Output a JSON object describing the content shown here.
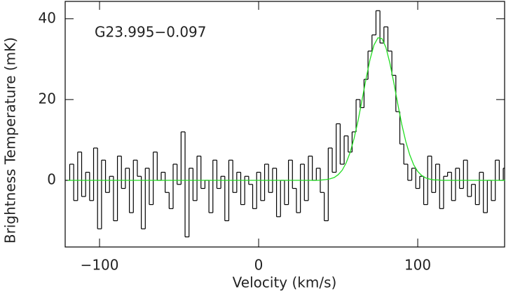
{
  "chart_data": {
    "type": "spectrum",
    "annotation": "G23.995−0.097",
    "xlabel": "Velocity (km/s)",
    "ylabel": "Brightness Temperature (mK)",
    "xlim": [
      -121.6,
      154.6
    ],
    "ylim": [
      -16.5,
      44.3
    ],
    "xticks": [
      {
        "value": -100,
        "label": "−100"
      },
      0,
      100
    ],
    "yticks": [
      0,
      20,
      40
    ],
    "x": [
      -120,
      -117.5,
      -115,
      -112.5,
      -110,
      -107.5,
      -105,
      -102.5,
      -100,
      -97.5,
      -95,
      -92.5,
      -90,
      -87.5,
      -85,
      -82.5,
      -80,
      -77.5,
      -75,
      -72.5,
      -70,
      -67.5,
      -65,
      -62.5,
      -60,
      -57.5,
      -55,
      -52.5,
      -50,
      -47.5,
      -45,
      -42.5,
      -40,
      -37.5,
      -35,
      -32.5,
      -30,
      -27.5,
      -25,
      -22.5,
      -20,
      -17.5,
      -15,
      -12.5,
      -10,
      -7.5,
      -5,
      -2.5,
      0,
      2.5,
      5,
      7.5,
      10,
      12.5,
      15,
      17.5,
      20,
      22.5,
      25,
      27.5,
      30,
      32.5,
      35,
      37.5,
      40,
      42.5,
      45,
      47.5,
      50,
      52.5,
      55,
      57.5,
      60,
      62.5,
      65,
      67.5,
      70,
      72.5,
      75,
      77.5,
      80,
      82.5,
      85,
      87.5,
      90,
      92.5,
      95,
      97.5,
      100,
      102.5,
      105,
      107.5,
      110,
      112.5,
      115,
      117.5,
      120,
      122.5,
      125,
      127.5,
      130,
      132.5,
      135,
      137.5,
      140,
      142.5,
      145,
      147.5,
      150,
      152.5,
      155
    ],
    "series": [
      {
        "style": "steps",
        "color": "#000000",
        "values": [
          0,
          4,
          -5,
          7,
          -4,
          2,
          -5,
          8,
          -12,
          5,
          -3,
          1,
          -10,
          6,
          -2,
          3,
          -8,
          5,
          1,
          -12,
          3,
          -6,
          7,
          0,
          2,
          -3,
          -7,
          4,
          -1,
          12,
          -14,
          3,
          -5,
          6,
          -2,
          0,
          -8,
          5,
          -2,
          1,
          -10,
          5,
          -3,
          2,
          -6,
          1,
          -1,
          -7,
          2,
          -5,
          4,
          -3,
          3,
          -9,
          0,
          -6,
          5,
          -2,
          -8,
          4,
          -5,
          6,
          0,
          3,
          -3,
          -10,
          8,
          2,
          14,
          4,
          11,
          7,
          12,
          20,
          18,
          25,
          32,
          36,
          42,
          34,
          38,
          32,
          26,
          17,
          9,
          4,
          0,
          3,
          -2,
          1,
          -6,
          6,
          -3,
          4,
          -7,
          1,
          2,
          -5,
          3,
          -2,
          5,
          -4,
          -1,
          -6,
          2,
          -8,
          0,
          -5,
          5,
          0,
          3
        ]
      },
      {
        "style": "line",
        "color": "#22dd22",
        "values": [
          0,
          0,
          0,
          0,
          0,
          0,
          0,
          0,
          0,
          0,
          0,
          0,
          0,
          0,
          0,
          0,
          0,
          0,
          0,
          0,
          0,
          0,
          0,
          0,
          0,
          0,
          0,
          0,
          0,
          0,
          0,
          0,
          0,
          0,
          0,
          0,
          0,
          0,
          0,
          0,
          0,
          0,
          0,
          0,
          0,
          0,
          0,
          0,
          0,
          0,
          0,
          0,
          0,
          0,
          0,
          0,
          0,
          0,
          0,
          0,
          0,
          0,
          0,
          0,
          0.1,
          0.2,
          0.4,
          0.7,
          1.4,
          2.5,
          4.3,
          6.9,
          10.4,
          14.8,
          19.9,
          25.1,
          29.9,
          33.5,
          35.3,
          35.1,
          32.9,
          29.0,
          24.1,
          18.8,
          13.8,
          9.6,
          6.3,
          3.8,
          2.2,
          1.2,
          0.6,
          0.3,
          0.1,
          0.1,
          0,
          0,
          0,
          0,
          0,
          0,
          0,
          0,
          0,
          0,
          0,
          0,
          0,
          0,
          0,
          0,
          0
        ]
      }
    ]
  }
}
